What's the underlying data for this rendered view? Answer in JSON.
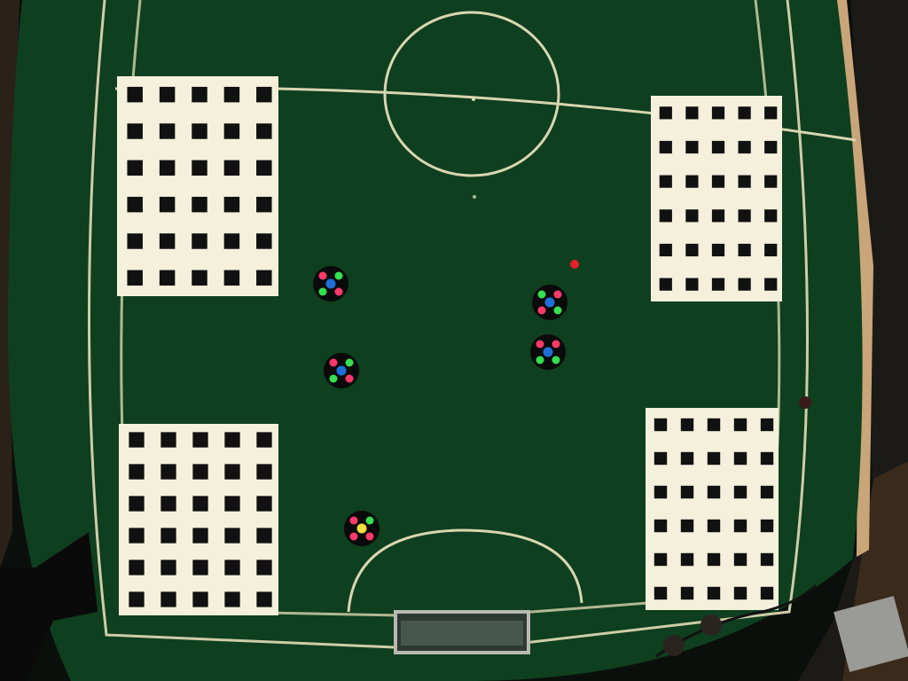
{
  "scene": {
    "description_name": "overhead-robot-soccer-field",
    "colors": {
      "background_dark": "#0b0f0b",
      "field": "#0e3f1e",
      "field_edge": "#0a3318",
      "line": "#d8d6b0",
      "calibration_white": "#f4f0dc",
      "calibration_black": "#111111",
      "robot_body": "#0a0a0a",
      "marker_green": "#35e050",
      "marker_pink": "#ff3a6a",
      "marker_blue": "#1f6fd8",
      "marker_yellow": "#f3e040",
      "ball": "#e8202a",
      "goal": "#b9b9b0",
      "floor_right": "#3a2a1c",
      "wall_left": "#c9a57a"
    },
    "calibration_board_grid": {
      "rows": 6,
      "cols": 5
    },
    "robot_count": 5,
    "ball_count": 1,
    "goal_count": 1
  }
}
